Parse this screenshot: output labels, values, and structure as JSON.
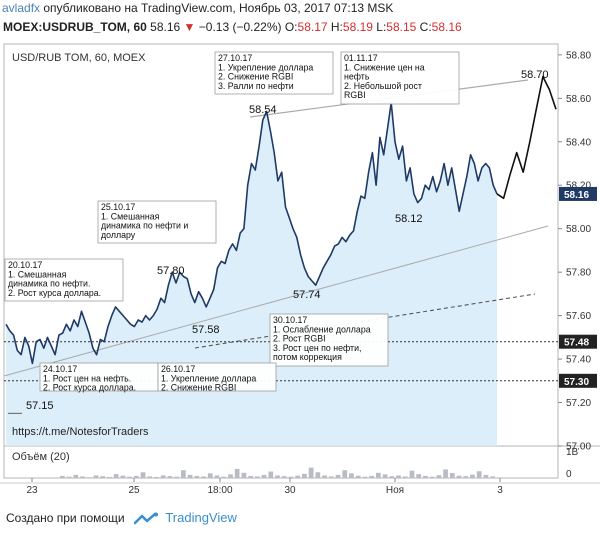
{
  "header": {
    "user": "avladfx",
    "text": "опубликовано на TradingView.com, Ноябрь 03, 2017 07:13 MSK"
  },
  "quote": {
    "symbol": "MOEX:USDRUB_TOM, 60",
    "last": "58.16",
    "change": "−0.13 (−0.22%)",
    "o_label": "O:",
    "o": "58.17",
    "h_label": "H:",
    "h": "58.19",
    "l_label": "L:",
    "l": "58.15",
    "c_label": "C:",
    "c": "58.16"
  },
  "colors": {
    "line": "#1f3a66",
    "area": "#d8ecf8",
    "trend": "#aaaaaa",
    "dashed": "#555555",
    "neg": "#d32f2f",
    "volume": "#b8bcc4"
  },
  "chart_data": {
    "type": "line",
    "title": "USD/RUB TOM, 60, MOEX",
    "ylim": [
      57.0,
      58.85
    ],
    "y_ticks": [
      "58.80",
      "58.60",
      "58.40",
      "58.20",
      "58.00",
      "57.80",
      "57.60",
      "57.40",
      "57.20",
      "57.00"
    ],
    "x_ticks": [
      "23",
      "25",
      "18:00",
      "30",
      "Ноя",
      "3"
    ],
    "price_labels": [
      "58.16",
      "57.48",
      "57.30"
    ],
    "series": [
      {
        "values": [
          57.56,
          57.53,
          57.51,
          57.44,
          57.42,
          57.5,
          57.46,
          57.38,
          57.48,
          57.49,
          57.45,
          57.5,
          57.46,
          57.42,
          57.51,
          57.52,
          57.56,
          57.53,
          57.58,
          57.55,
          57.62,
          57.57,
          57.52,
          57.45,
          57.42,
          57.49,
          57.48,
          57.55,
          57.6,
          57.64,
          57.62,
          57.6,
          57.58,
          57.56,
          57.55,
          57.58,
          57.57,
          57.6,
          57.58,
          57.6,
          57.63,
          57.68,
          57.66,
          57.74,
          57.8,
          57.75,
          57.8,
          57.78,
          57.77,
          57.7,
          57.66,
          57.71,
          57.68,
          57.64,
          57.68,
          57.72,
          57.82,
          57.85,
          57.84,
          57.9,
          57.93,
          57.9,
          57.98,
          58.0,
          58.2,
          58.3,
          58.27,
          58.38,
          58.5,
          58.54,
          58.45,
          58.35,
          58.22,
          58.26,
          58.1,
          58.05,
          58.0,
          57.96,
          57.88,
          57.82,
          57.78,
          57.76,
          57.74,
          57.78,
          57.82,
          57.85,
          57.88,
          57.92,
          57.93,
          57.96,
          57.94,
          57.97,
          57.99,
          58.08,
          58.15,
          58.14,
          58.26,
          58.35,
          58.2,
          58.42,
          58.34,
          58.46,
          58.58,
          58.4,
          58.32,
          58.38,
          58.22,
          58.28,
          58.16,
          58.12,
          58.14,
          58.2,
          58.18,
          58.24,
          58.17,
          58.22,
          58.3,
          58.2,
          58.28,
          58.18,
          58.08,
          58.16,
          58.24,
          58.34,
          58.3,
          58.22,
          58.28,
          58.3,
          58.28,
          58.2,
          58.16
        ]
      },
      {
        "values": [
          58.16,
          58.14,
          58.25,
          58.35,
          58.26,
          58.4,
          58.55,
          58.7,
          58.64,
          58.55
        ]
      }
    ],
    "annotations": [
      {
        "kind": "box",
        "lines": [
          "20.10.17",
          "1. Смешанная",
          "динамика по нефти.",
          "2. Рост курса доллара."
        ]
      },
      {
        "kind": "box",
        "lines": [
          "25.10.17",
          "1. Смешанная",
          "динамика по нефти и",
          "доллару"
        ]
      },
      {
        "kind": "box",
        "lines": [
          "27.10.17",
          "1. Укрепление доллара",
          "2. Снижение RGBI",
          "3. Ралли по нефти"
        ]
      },
      {
        "kind": "box",
        "lines": [
          "01.11.17",
          "1. Снижение цен на",
          "нефть",
          "2. Небольшой рост",
          "RGBI"
        ]
      },
      {
        "kind": "box",
        "lines": [
          "30.10.17",
          "1. Ослабление доллара",
          "2. Рост RGBI",
          "3. Рост цен по нефти,",
          "потом коррекция"
        ]
      },
      {
        "kind": "box",
        "lines": [
          "24.10.17",
          "1. Рост цен на нефть.",
          "2. Рост курса доллара."
        ]
      },
      {
        "kind": "box",
        "lines": [
          "26.10.17",
          "1. Укрепление доллара",
          "2. Снижение RGBI"
        ]
      },
      {
        "kind": "value",
        "text": "58.70"
      },
      {
        "kind": "value",
        "text": "58.54"
      },
      {
        "kind": "value",
        "text": "58.12"
      },
      {
        "kind": "value",
        "text": "57.80"
      },
      {
        "kind": "value",
        "text": "57.74"
      },
      {
        "kind": "value",
        "text": "57.58"
      },
      {
        "kind": "value",
        "text": "57.15"
      },
      {
        "kind": "text",
        "text": "https://t.me/NotesforTraders"
      }
    ],
    "volume": {
      "label": "Объём (20)",
      "y_ticks": [
        "1B",
        "0"
      ],
      "values": [
        0.08,
        0.05,
        0.12,
        0.06,
        0.03,
        0.1,
        0.07,
        0.04,
        0.15,
        0.09,
        0.05,
        0.08,
        0.22,
        0.06,
        0.04,
        0.1,
        0.07,
        0.05,
        0.3,
        0.12,
        0.08,
        0.06,
        0.18,
        0.1,
        0.05,
        0.14,
        0.35,
        0.2,
        0.08,
        0.06,
        0.12,
        0.25,
        0.1,
        0.07,
        0.05,
        0.09,
        0.16,
        0.4,
        0.22,
        0.1,
        0.06,
        0.12,
        0.3,
        0.18,
        0.09,
        0.05,
        0.08,
        0.2,
        0.14,
        0.07,
        0.1,
        0.06,
        0.28,
        0.15,
        0.08,
        0.05,
        0.11,
        0.33,
        0.19,
        0.09,
        0.07,
        0.13,
        0.26,
        0.12,
        0.06
      ]
    }
  },
  "footer": {
    "created": "Создано при помощи",
    "brand": "TradingView"
  }
}
